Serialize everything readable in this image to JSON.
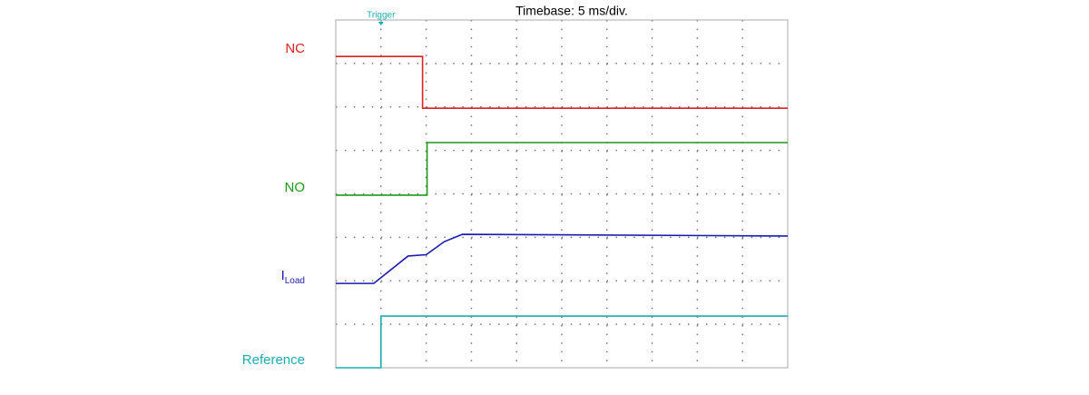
{
  "chart_data": {
    "type": "line",
    "title": "Timebase: 5 ms/div.",
    "annotations": {
      "trigger": "Trigger",
      "trigger_x": 1.0
    },
    "xlim": [
      0,
      10
    ],
    "ylim": [
      0,
      8
    ],
    "grid": {
      "x_divisions": 10,
      "y_divisions": 8
    },
    "series": [
      {
        "name": "NC",
        "color": "#e0201b",
        "x": [
          0,
          1.92,
          1.92,
          10
        ],
        "values": [
          7.16,
          7.16,
          5.97,
          5.97
        ]
      },
      {
        "name": "NO",
        "color": "#1a9a1a",
        "x": [
          0,
          2.02,
          2.02,
          10
        ],
        "values": [
          3.97,
          3.97,
          5.18,
          5.18
        ]
      },
      {
        "name": "I",
        "name_subscript": "Load",
        "color": "#1a1ab0",
        "x": [
          0,
          0.84,
          1.6,
          2.0,
          2.4,
          2.8,
          10
        ],
        "values": [
          1.94,
          1.94,
          2.57,
          2.6,
          2.9,
          3.07,
          3.03
        ]
      },
      {
        "name": "Reference",
        "color": "#1aaeb0",
        "x": [
          0,
          1.0,
          1.0,
          10
        ],
        "values": [
          0,
          0,
          1.19,
          1.19
        ]
      }
    ]
  }
}
